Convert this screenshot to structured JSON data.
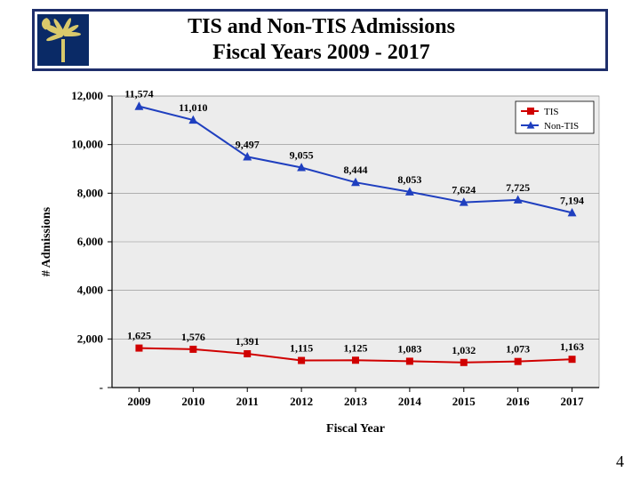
{
  "title": {
    "line1": "TIS and Non-TIS Admissions",
    "line2": "Fiscal Years 2009 - 2017"
  },
  "page_number": "4",
  "chart": {
    "type": "line",
    "plot_bg": "#ececec",
    "outer_bg": "#ffffff",
    "grid_color": "#8a8a8a",
    "axis_color": "#000000",
    "x_label": "Fiscal Year",
    "y_label": "# Admissions",
    "label_fontsize": 14,
    "tick_fontsize": 13,
    "datalabel_fontsize": 12,
    "categories": [
      "2009",
      "2010",
      "2011",
      "2012",
      "2013",
      "2014",
      "2015",
      "2016",
      "2017"
    ],
    "y_ticks": [
      0,
      2000,
      4000,
      6000,
      8000,
      10000,
      12000
    ],
    "y_tick_labels": [
      "-",
      "2,000",
      "4,000",
      "6,000",
      "8,000",
      "10,000",
      "12,000"
    ],
    "ylim": [
      0,
      12000
    ],
    "legend": {
      "position": "top-right",
      "bg": "#ffffff",
      "border": "#000000",
      "items": [
        {
          "label": "TIS",
          "color": "#d00000",
          "marker": "square"
        },
        {
          "label": "Non-TIS",
          "color": "#1f3fbf",
          "marker": "triangle"
        }
      ]
    },
    "series": [
      {
        "name": "TIS",
        "color": "#d00000",
        "marker": "square",
        "line_width": 2,
        "marker_size": 8,
        "values": [
          1625,
          1576,
          1391,
          1115,
          1125,
          1083,
          1032,
          1073,
          1163
        ],
        "value_labels": [
          "1,625",
          "1,576",
          "1,391",
          "1,115",
          "1,125",
          "1,083",
          "1,032",
          "1,073",
          "1,163"
        ]
      },
      {
        "name": "Non-TIS",
        "color": "#1f3fbf",
        "marker": "triangle",
        "line_width": 2,
        "marker_size": 9,
        "values": [
          11574,
          11010,
          9497,
          9055,
          8444,
          8053,
          7624,
          7725,
          7194
        ],
        "value_labels": [
          "11,574",
          "11,010",
          "9,497",
          "9,055",
          "8,444",
          "8,053",
          "7,624",
          "7,725",
          "7,194"
        ]
      }
    ]
  }
}
